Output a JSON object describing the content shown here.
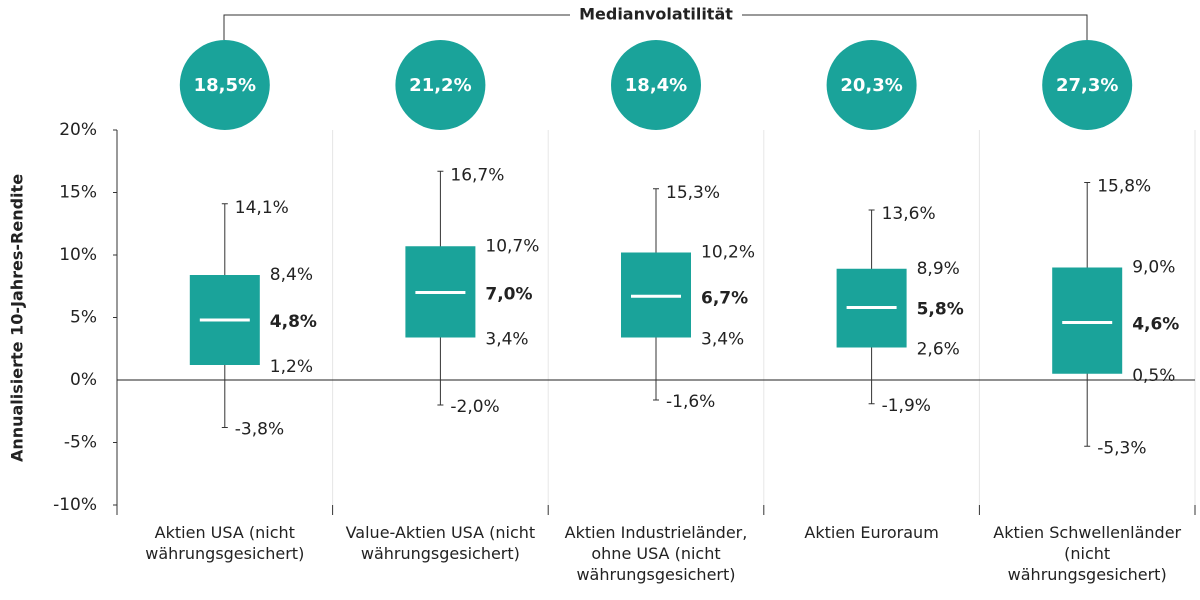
{
  "chart_data": {
    "type": "box",
    "title": "Medianvolatilität",
    "y_label": "Annualisierte 10-Jahres-Rendite",
    "categories": [
      "Aktien USA (nicht währungsgesichert)",
      "Value-Aktien USA (nicht währungsgesichert)",
      "Aktien Industrieländer, ohne USA (nicht währungsgesichert)",
      "Aktien Euroraum",
      "Aktien Schwellenländer (nicht währungsgesichert)"
    ],
    "volatility": {
      "values": [
        18.5,
        21.2,
        18.4,
        20.3,
        27.3
      ],
      "value_labels": [
        "18,5%",
        "21,2%",
        "18,4%",
        "20,3%",
        "27,3%"
      ],
      "color": "#1aa39a"
    },
    "whislo": {
      "values": [
        -3.8,
        -2.0,
        -1.6,
        -1.9,
        -5.3
      ],
      "value_labels": [
        "-3,8%",
        "-2,0%",
        "-1,6%",
        "-1,9%",
        "-5,3%"
      ]
    },
    "q1": {
      "values": [
        1.2,
        3.4,
        3.4,
        2.6,
        0.5
      ],
      "value_labels": [
        "1,2%",
        "3,4%",
        "3,4%",
        "2,6%",
        "0,5%"
      ]
    },
    "med": {
      "values": [
        4.8,
        7.0,
        6.7,
        5.8,
        4.6
      ],
      "value_labels": [
        "4,8%",
        "7,0%",
        "6,7%",
        "5,8%",
        "4,6%"
      ]
    },
    "q3": {
      "values": [
        8.4,
        10.7,
        10.2,
        8.9,
        9.0
      ],
      "value_labels": [
        "8,4%",
        "10,7%",
        "10,2%",
        "8,9%",
        "9,0%"
      ]
    },
    "whishi": {
      "values": [
        14.1,
        16.7,
        15.3,
        13.6,
        15.8
      ],
      "value_labels": [
        "14,1%",
        "16,7%",
        "15,3%",
        "13,6%",
        "15,8%"
      ]
    },
    "box_color": "#1aa39a",
    "median_color": "#ffffff",
    "ylim": [
      -10,
      20
    ],
    "yticks": [
      {
        "value": -10,
        "label": "-10%"
      },
      {
        "value": -5,
        "label": "-5%"
      },
      {
        "value": 0,
        "label": "0%"
      },
      {
        "value": 5,
        "label": "5%"
      },
      {
        "value": 10,
        "label": "10%"
      },
      {
        "value": 15,
        "label": "15%"
      },
      {
        "value": 20,
        "label": "20%"
      }
    ]
  }
}
